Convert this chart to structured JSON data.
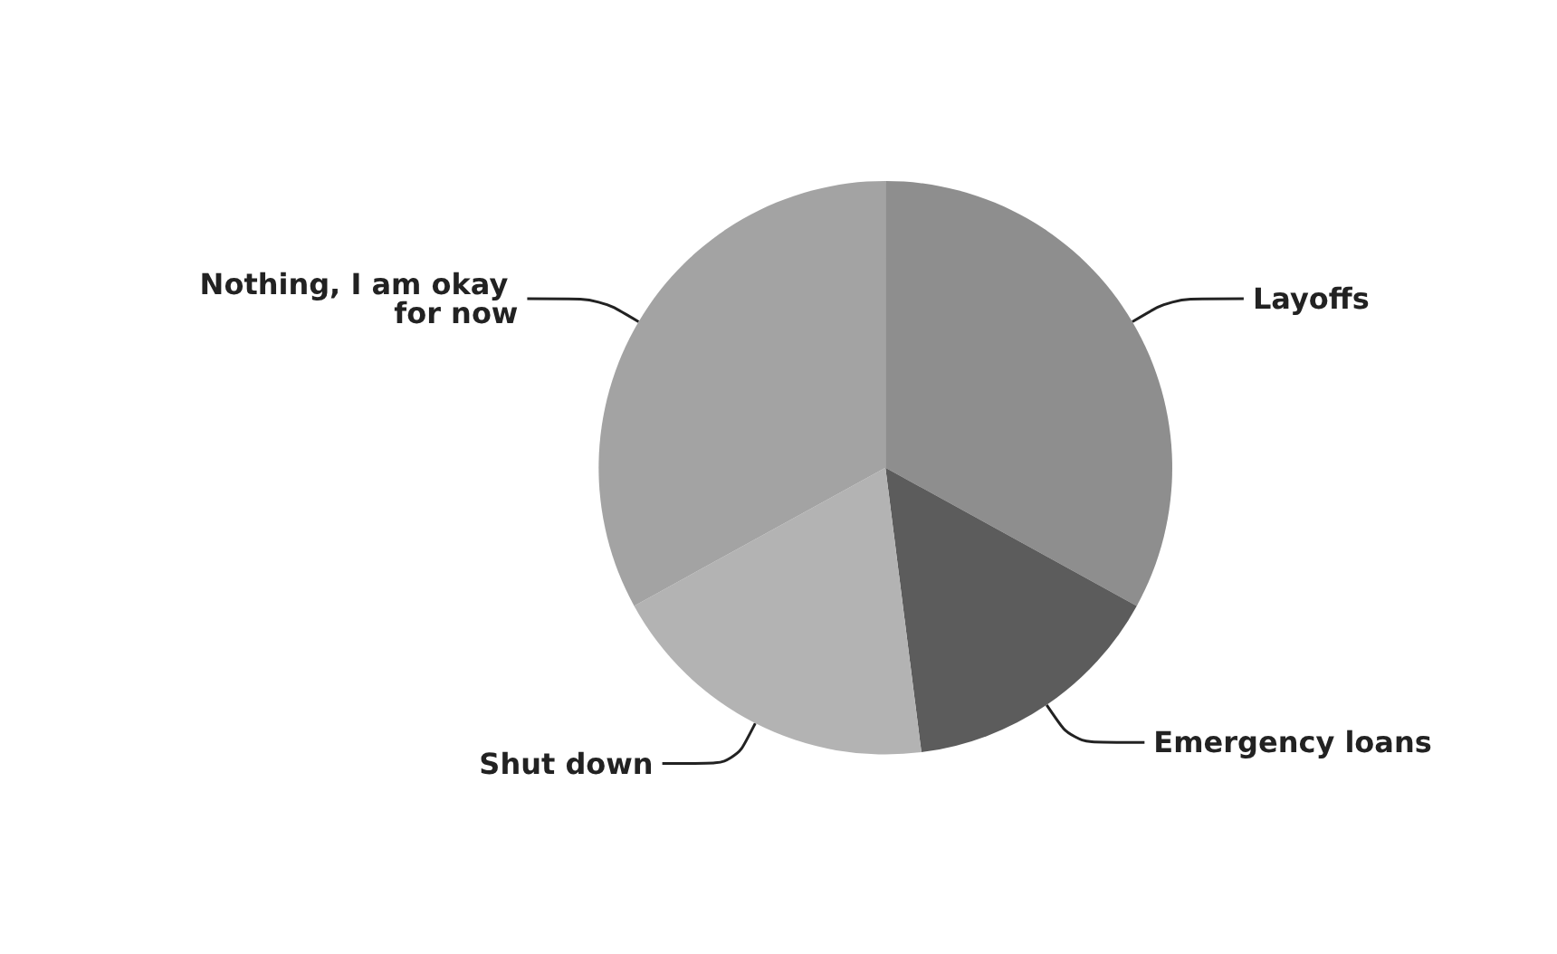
{
  "chart_data": {
    "type": "pie",
    "categories": [
      "Layoffs",
      "Emergency loans",
      "Shut down",
      "Nothing, I am okay for now"
    ],
    "values": [
      33,
      15,
      19,
      33
    ],
    "colors": [
      "#8e8e8e",
      "#5c5c5c",
      "#b3b3b3",
      "#a3a3a3"
    ]
  }
}
